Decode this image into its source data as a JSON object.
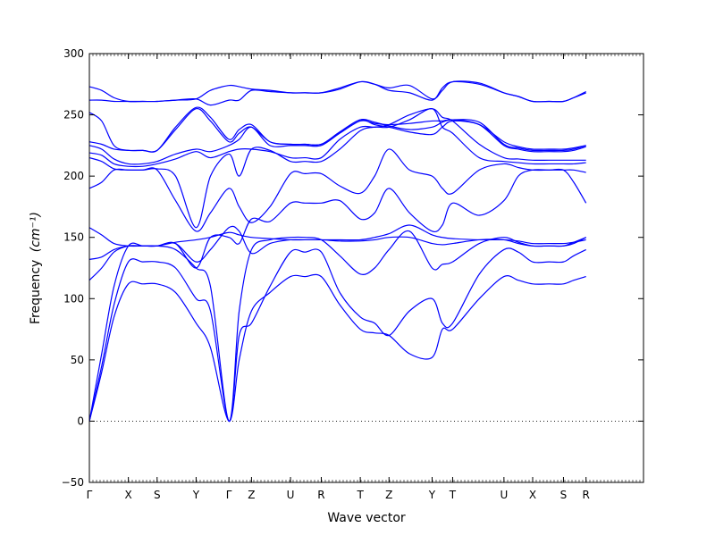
{
  "chart_data": {
    "type": "line",
    "title": "",
    "xlabel": "Wave vector",
    "ylabel": "Frequency",
    "ylabel_unit": "(cm⁻¹)",
    "ylim": [
      -50,
      300
    ],
    "yticks": [
      -50,
      0,
      50,
      100,
      150,
      200,
      250,
      300
    ],
    "xlim": [
      0,
      27
    ],
    "xticks": [
      {
        "label": "Γ",
        "x": 0
      },
      {
        "label": "X",
        "x": 1.9
      },
      {
        "label": "S",
        "x": 3.3
      },
      {
        "label": "Y",
        "x": 5.2
      },
      {
        "label": "Γ",
        "x": 6.8
      },
      {
        "label": "Z",
        "x": 7.9
      },
      {
        "label": "U",
        "x": 9.8
      },
      {
        "label": "R",
        "x": 11.3
      },
      {
        "label": "T",
        "x": 13.2
      },
      {
        "label": "Z",
        "x": 14.6
      },
      {
        "label": "Y",
        "x": 16.7
      },
      {
        "label": "T",
        "x": 17.7
      },
      {
        "label": "U",
        "x": 20.2
      },
      {
        "label": "X",
        "x": 21.6
      },
      {
        "label": "S",
        "x": 23.1
      },
      {
        "label": "R",
        "x": 24.2
      }
    ],
    "zero_line": true,
    "line_color": "#0000ff",
    "series": [
      {
        "x": [
          0,
          0.6,
          1.2,
          1.9,
          2.6,
          3.3,
          4.2,
          5.2,
          5.9,
          6.8,
          7.3,
          7.9,
          8.8,
          9.8,
          10.5,
          11.3,
          12.2,
          13.2,
          13.9,
          14.6,
          15.6,
          16.7,
          17.2,
          17.7,
          19.0,
          20.2,
          20.9,
          21.6,
          22.4,
          23.1,
          23.6,
          24.2
        ],
        "values": [
          0,
          40,
          85,
          112,
          112,
          112,
          105,
          80,
          60,
          0,
          50,
          90,
          105,
          118,
          118,
          118,
          95,
          75,
          72,
          70,
          55,
          52,
          75,
          75,
          100,
          118,
          115,
          112,
          112,
          112,
          115,
          118
        ]
      },
      {
        "x": [
          0,
          0.6,
          1.2,
          1.9,
          2.6,
          3.3,
          4.2,
          5.2,
          5.9,
          6.8,
          7.3,
          7.9,
          8.8,
          9.8,
          10.5,
          11.3,
          12.2,
          13.2,
          13.9,
          14.6,
          15.6,
          16.7,
          17.2,
          17.7,
          19.0,
          20.2,
          20.9,
          21.6,
          22.4,
          23.1,
          23.6,
          24.2
        ],
        "values": [
          0,
          45,
          95,
          130,
          130,
          130,
          125,
          100,
          90,
          0,
          70,
          80,
          110,
          138,
          138,
          138,
          105,
          85,
          80,
          70,
          90,
          100,
          80,
          80,
          120,
          140,
          138,
          130,
          130,
          130,
          135,
          140
        ]
      },
      {
        "x": [
          0,
          0.6,
          1.2,
          1.9,
          2.6,
          3.3,
          4.2,
          5.2,
          5.9,
          6.8,
          7.3,
          7.9,
          8.8,
          9.8,
          10.5,
          11.3,
          12.2,
          13.2,
          13.9,
          14.6,
          15.6,
          16.7,
          17.2,
          17.7,
          19.0,
          20.2,
          20.9,
          21.6,
          22.4,
          23.1,
          23.6,
          24.2
        ],
        "values": [
          0,
          55,
          110,
          143,
          143,
          143,
          140,
          125,
          110,
          0,
          90,
          140,
          148,
          150,
          150,
          148,
          135,
          120,
          125,
          140,
          155,
          125,
          128,
          130,
          145,
          150,
          146,
          143,
          143,
          143,
          146,
          150
        ]
      },
      {
        "x": [
          0,
          0.6,
          1.2,
          1.9,
          2.6,
          3.3,
          4.2,
          5.2,
          5.9,
          6.8,
          7.3,
          7.9,
          8.8,
          9.8,
          10.5,
          11.3,
          12.2,
          13.2,
          13.9,
          14.6,
          15.6,
          16.7,
          17.2,
          17.7,
          19.0,
          20.2,
          20.9,
          21.6,
          22.4,
          23.1,
          23.6,
          24.2
        ],
        "values": [
          115,
          125,
          138,
          143,
          143,
          143,
          145,
          130,
          140,
          158,
          155,
          137,
          145,
          148,
          148,
          148,
          147,
          147,
          148,
          150,
          150,
          145,
          144,
          145,
          148,
          148,
          145,
          143,
          143,
          143,
          145,
          150
        ]
      },
      {
        "x": [
          0,
          0.6,
          1.2,
          1.9,
          2.6,
          3.3,
          4.2,
          5.2,
          5.9,
          6.8,
          7.3,
          7.9,
          8.8,
          9.8,
          10.5,
          11.3,
          12.2,
          13.2,
          13.9,
          14.6,
          15.6,
          16.7,
          17.2,
          17.7,
          19.0,
          20.2,
          20.9,
          21.6,
          22.4,
          23.1,
          23.6,
          24.2
        ],
        "values": [
          132,
          134,
          140,
          143,
          143,
          143,
          146,
          148,
          150,
          154,
          152,
          150,
          149,
          148,
          148,
          148,
          148,
          148,
          150,
          153,
          160,
          152,
          150,
          149,
          148,
          148,
          147,
          145,
          145,
          145,
          146,
          148
        ]
      },
      {
        "x": [
          0,
          0.6,
          1.2,
          1.9,
          2.6,
          3.3,
          4.2,
          5.2,
          5.9,
          6.8,
          7.3,
          7.9,
          8.8,
          9.8,
          10.5,
          11.3,
          12.2,
          13.2,
          13.9,
          14.6,
          15.6,
          16.7,
          17.2,
          17.7,
          19.0,
          20.2,
          20.9,
          21.6,
          22.4,
          23.1,
          23.6,
          24.2
        ],
        "values": [
          158,
          152,
          145,
          143,
          143,
          143,
          145,
          125,
          150,
          150,
          145,
          165,
          163,
          178,
          178,
          178,
          180,
          165,
          170,
          190,
          170,
          155,
          160,
          178,
          168,
          180,
          200,
          205,
          205,
          205,
          195,
          178
        ]
      },
      {
        "x": [
          0,
          0.6,
          1.2,
          1.9,
          2.6,
          3.3,
          4.2,
          5.2,
          5.9,
          6.8,
          7.3,
          7.9,
          8.8,
          9.8,
          10.5,
          11.3,
          12.2,
          13.2,
          13.9,
          14.6,
          15.6,
          16.7,
          17.2,
          17.7,
          19.0,
          20.2,
          20.9,
          21.6,
          22.4,
          23.1,
          23.6,
          24.2
        ],
        "values": [
          190,
          195,
          205,
          205,
          205,
          205,
          180,
          155,
          170,
          190,
          175,
          162,
          175,
          202,
          202,
          202,
          192,
          186,
          200,
          222,
          205,
          200,
          190,
          186,
          205,
          210,
          207,
          205,
          205,
          205,
          205,
          203
        ]
      },
      {
        "x": [
          0,
          0.6,
          1.2,
          1.9,
          2.6,
          3.3,
          4.2,
          5.2,
          5.9,
          6.8,
          7.3,
          7.9,
          8.8,
          9.8,
          10.5,
          11.3,
          12.2,
          13.2,
          13.9,
          14.6,
          15.6,
          16.7,
          17.2,
          17.7,
          19.0,
          20.2,
          20.9,
          21.6,
          22.4,
          23.1,
          23.6,
          24.2
        ],
        "values": [
          215,
          212,
          206,
          205,
          205,
          206,
          200,
          158,
          200,
          218,
          200,
          222,
          221,
          212,
          212,
          212,
          222,
          237,
          240,
          240,
          246,
          255,
          240,
          235,
          215,
          212,
          211,
          210,
          210,
          210,
          210,
          211
        ]
      },
      {
        "x": [
          0,
          0.6,
          1.2,
          1.9,
          2.6,
          3.3,
          4.2,
          5.2,
          5.9,
          6.8,
          7.3,
          7.9,
          8.8,
          9.8,
          10.5,
          11.3,
          12.2,
          13.2,
          13.9,
          14.6,
          15.6,
          16.7,
          17.2,
          17.7,
          19.0,
          20.2,
          20.9,
          21.6,
          22.4,
          23.1,
          23.6,
          24.2
        ],
        "values": [
          219,
          217,
          210,
          208,
          208,
          210,
          214,
          220,
          215,
          220,
          222,
          222,
          220,
          215,
          215,
          215,
          230,
          240,
          240,
          242,
          250,
          255,
          248,
          245,
          226,
          215,
          214,
          213,
          213,
          213,
          213,
          213
        ]
      },
      {
        "x": [
          0,
          0.6,
          1.2,
          1.9,
          2.6,
          3.3,
          4.2,
          5.2,
          5.9,
          6.8,
          7.3,
          7.9,
          8.8,
          9.8,
          10.5,
          11.3,
          12.2,
          13.2,
          13.9,
          14.6,
          15.6,
          16.7,
          17.2,
          17.7,
          19.0,
          20.2,
          20.9,
          21.6,
          22.4,
          23.1,
          23.6,
          24.2
        ],
        "values": [
          225,
          222,
          214,
          210,
          210,
          212,
          218,
          222,
          220,
          225,
          230,
          240,
          225,
          225,
          225,
          225,
          235,
          245,
          243,
          242,
          243,
          245,
          245,
          246,
          242,
          225,
          222,
          220,
          220,
          220,
          221,
          224
        ]
      },
      {
        "x": [
          0,
          0.6,
          1.2,
          1.9,
          2.6,
          3.3,
          4.2,
          5.2,
          5.9,
          6.8,
          7.3,
          7.9,
          8.8,
          9.8,
          10.5,
          11.3,
          12.2,
          13.2,
          13.9,
          14.6,
          15.6,
          16.7,
          17.2,
          17.7,
          19.0,
          20.2,
          20.9,
          21.6,
          22.4,
          23.1,
          23.6,
          24.2
        ],
        "values": [
          228,
          226,
          222,
          221,
          221,
          221,
          238,
          255,
          245,
          228,
          235,
          240,
          228,
          226,
          226,
          226,
          236,
          246,
          244,
          241,
          238,
          240,
          244,
          246,
          244,
          226,
          223,
          221,
          221,
          221,
          222,
          225
        ]
      },
      {
        "x": [
          0,
          0.6,
          1.2,
          1.9,
          2.6,
          3.3,
          4.2,
          5.2,
          5.9,
          6.8,
          7.3,
          7.9,
          8.8,
          9.8,
          10.5,
          11.3,
          12.2,
          13.2,
          13.9,
          14.6,
          15.6,
          16.7,
          17.2,
          17.7,
          19.0,
          20.2,
          20.9,
          21.6,
          22.4,
          23.1,
          23.6,
          24.2
        ],
        "values": [
          252,
          245,
          225,
          221,
          221,
          221,
          240,
          256,
          248,
          230,
          238,
          242,
          228,
          226,
          226,
          226,
          236,
          246,
          242,
          240,
          236,
          234,
          240,
          245,
          242,
          228,
          224,
          222,
          222,
          222,
          223,
          225
        ]
      },
      {
        "x": [
          0,
          0.6,
          1.2,
          1.9,
          2.6,
          3.3,
          4.2,
          5.2,
          5.9,
          6.8,
          7.3,
          7.9,
          8.8,
          9.8,
          10.5,
          11.3,
          12.2,
          13.2,
          13.9,
          14.6,
          15.6,
          16.7,
          17.2,
          17.7,
          19.0,
          20.2,
          20.9,
          21.6,
          22.4,
          23.1,
          23.6,
          24.2
        ],
        "values": [
          262,
          262,
          261,
          261,
          261,
          261,
          262,
          263,
          258,
          262,
          262,
          270,
          269,
          268,
          268,
          268,
          271,
          277,
          275,
          270,
          268,
          262,
          272,
          277,
          275,
          268,
          265,
          261,
          261,
          261,
          264,
          268
        ]
      },
      {
        "x": [
          0,
          0.6,
          1.2,
          1.9,
          2.6,
          3.3,
          4.2,
          5.2,
          5.9,
          6.8,
          7.3,
          7.9,
          8.8,
          9.8,
          10.5,
          11.3,
          12.2,
          13.2,
          13.9,
          14.6,
          15.6,
          16.7,
          17.2,
          17.7,
          19.0,
          20.2,
          20.9,
          21.6,
          22.4,
          23.1,
          23.6,
          24.2
        ],
        "values": [
          273,
          270,
          264,
          261,
          261,
          261,
          262,
          263,
          270,
          274,
          273,
          271,
          270,
          268,
          268,
          268,
          272,
          277,
          275,
          272,
          274,
          263,
          270,
          277,
          276,
          268,
          265,
          261,
          261,
          261,
          264,
          269
        ]
      }
    ]
  }
}
